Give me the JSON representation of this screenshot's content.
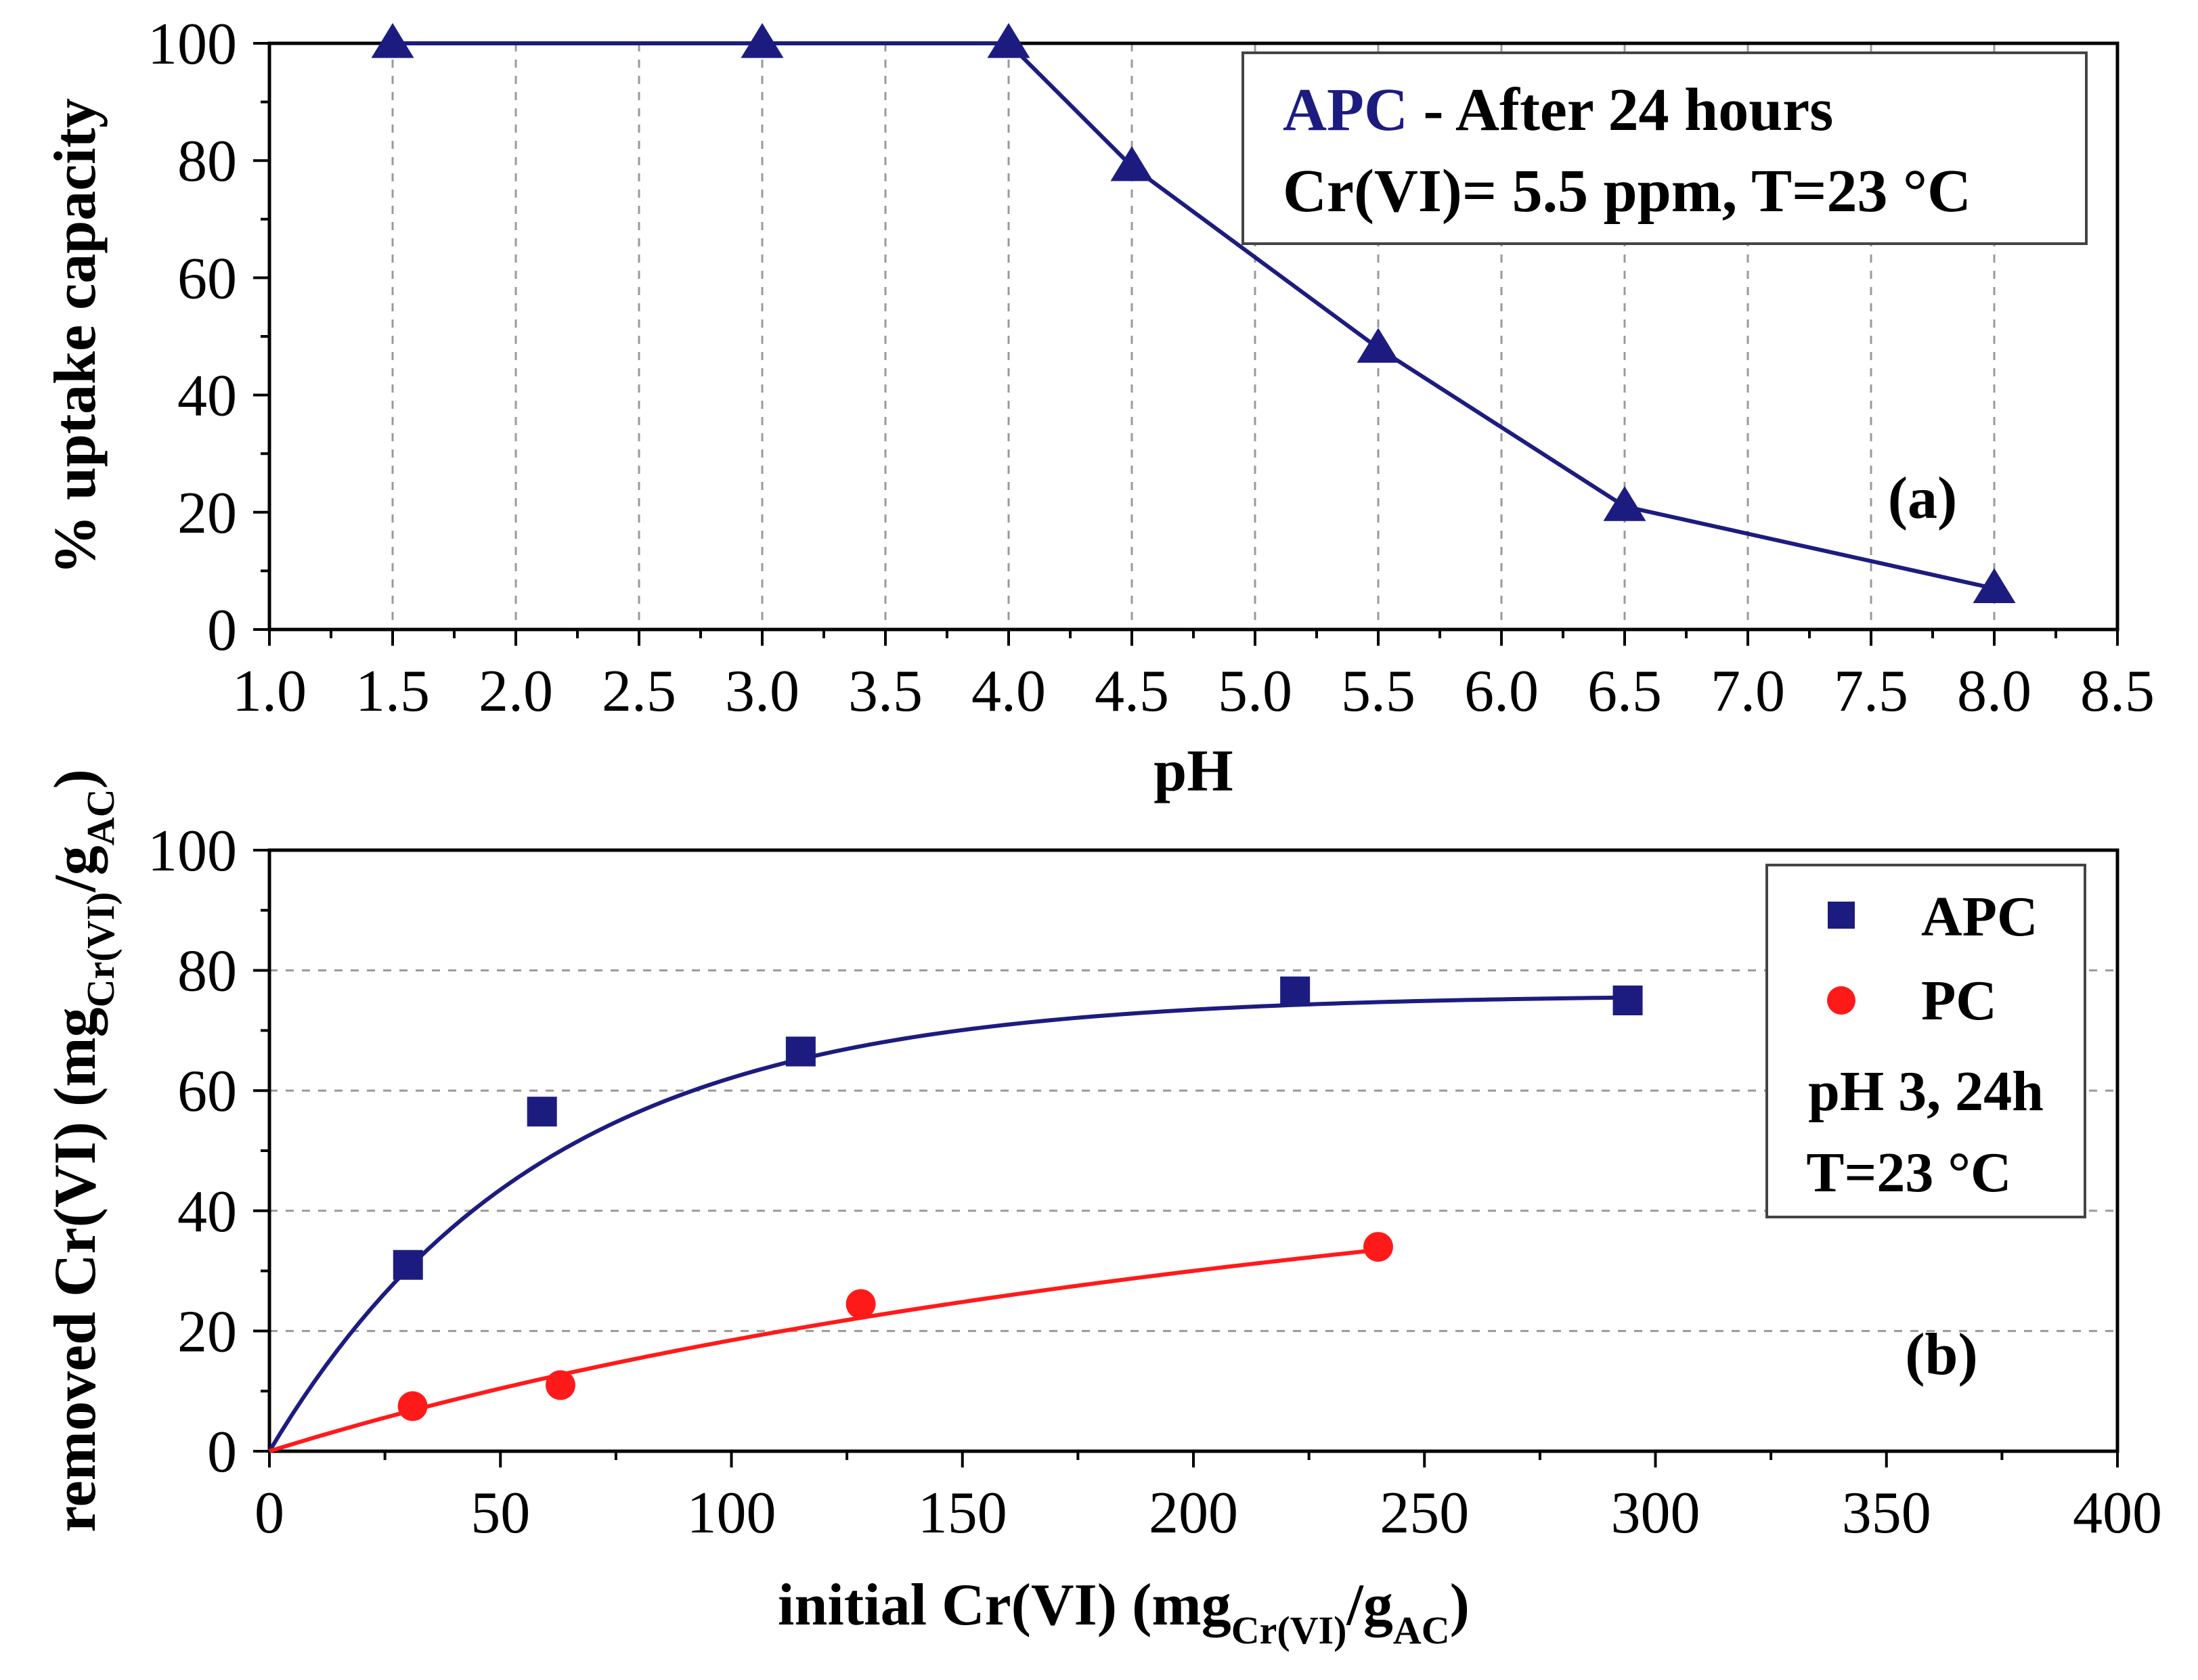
{
  "chart_data": [
    {
      "id": "a",
      "type": "line",
      "panel_label": "(a)",
      "xlabel": "pH",
      "ylabel": "% uptake capacity",
      "xlim": [
        1.0,
        8.5
      ],
      "ylim": [
        0,
        100
      ],
      "xticks": [
        "1.0",
        "1.5",
        "2.0",
        "2.5",
        "3.0",
        "3.5",
        "4.0",
        "4.5",
        "5.0",
        "5.5",
        "6.0",
        "6.5",
        "7.0",
        "7.5",
        "8.0",
        "8.5"
      ],
      "yticks": [
        "0",
        "20",
        "40",
        "60",
        "80",
        "100"
      ],
      "grid": "vertical dashed",
      "legend": {
        "position": "top-right",
        "series_name": "APC",
        "line1_rest": " - After 24 hours",
        "line2": "Cr(VI)= 5.5 ppm, T=23 °C"
      },
      "series": [
        {
          "name": "APC",
          "color": "#1c1c80",
          "marker": "triangle",
          "x": [
            1.5,
            3.0,
            4.0,
            4.5,
            5.5,
            6.5,
            8.0
          ],
          "y": [
            100,
            100,
            100,
            79,
            48,
            21,
            7
          ]
        }
      ]
    },
    {
      "id": "b",
      "type": "scatter",
      "panel_label": "(b)",
      "xlabel_main": "initial Cr(VI) (mg",
      "xlabel_sub1": "Cr(VI)",
      "xlabel_mid": "/g",
      "xlabel_sub2": "AC",
      "xlabel_end": ")",
      "ylabel_main": "removed Cr(VI) (mg",
      "ylabel_sub1": "Cr(VI)",
      "ylabel_mid": "/g",
      "ylabel_sub2": "AC",
      "ylabel_end": ")",
      "xlim": [
        0,
        400
      ],
      "ylim": [
        0,
        100
      ],
      "xticks": [
        "0",
        "50",
        "100",
        "150",
        "200",
        "250",
        "300",
        "350",
        "400"
      ],
      "yticks": [
        "0",
        "20",
        "40",
        "60",
        "80",
        "100"
      ],
      "grid": "horizontal dashed",
      "legend": {
        "position": "top-right",
        "conditions_line1": "pH 3, 24h",
        "conditions_line2": "T=23 °C"
      },
      "series": [
        {
          "name": "APC",
          "color": "#1c1c80",
          "marker": "square",
          "x": [
            30,
            59,
            115,
            222,
            294
          ],
          "y": [
            31,
            56.5,
            66.5,
            76.5,
            75
          ],
          "fit": {
            "model": "exponential",
            "ymax": 76,
            "k": 0.017,
            "x_end": 294
          }
        },
        {
          "name": "PC",
          "color": "#ff1a1a",
          "marker": "circle",
          "x": [
            31,
            63,
            128,
            240
          ],
          "y": [
            7.5,
            11,
            24.5,
            34
          ],
          "fit": {
            "model": "langmuir",
            "qmax": 80,
            "kl": 0.003,
            "x_end": 240
          }
        }
      ]
    }
  ]
}
